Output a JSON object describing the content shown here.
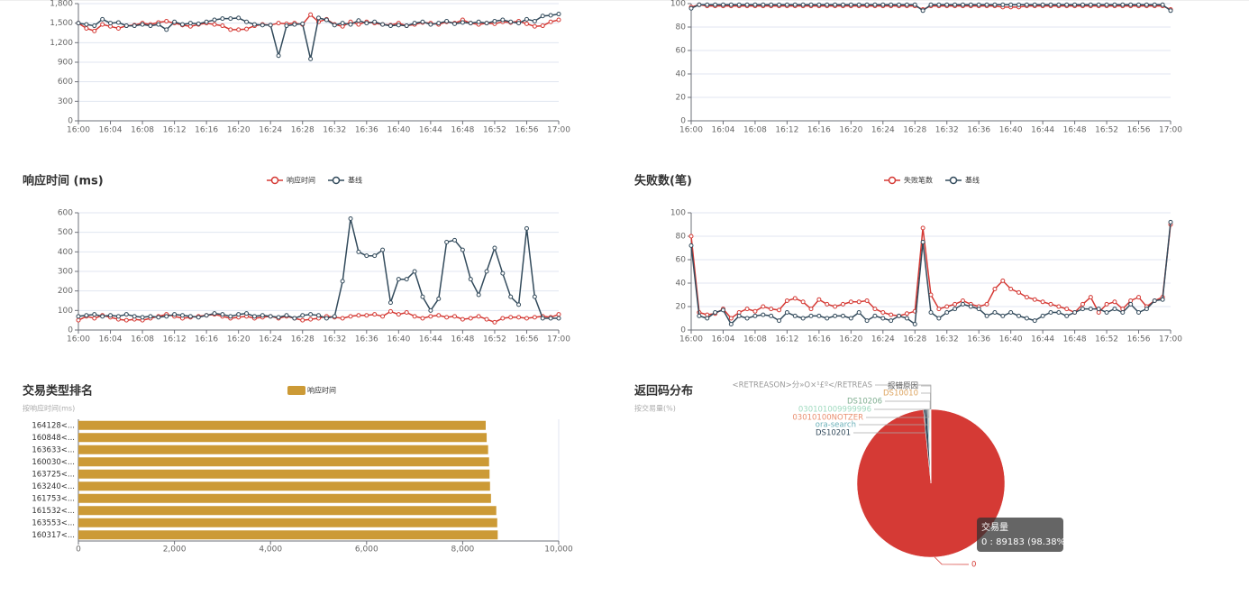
{
  "chart_data": [
    {
      "type": "line",
      "categories": [
        "16:00",
        null,
        null,
        null,
        "16:04",
        null,
        null,
        null,
        "16:08",
        null,
        null,
        null,
        "16:12",
        null,
        null,
        null,
        "16:16",
        null,
        null,
        null,
        "16:20",
        null,
        null,
        null,
        "16:24",
        null,
        null,
        null,
        "16:28",
        null,
        null,
        null,
        "16:32",
        null,
        null,
        null,
        "16:36",
        null,
        null,
        null,
        "16:40",
        null,
        null,
        null,
        "16:44",
        null,
        null,
        null,
        "16:48",
        null,
        null,
        null,
        "16:52",
        null,
        null,
        null,
        "16:56",
        null,
        null,
        null,
        "17:00"
      ],
      "ylim": [
        0,
        1800
      ],
      "yticks": [
        0,
        300,
        600,
        900,
        {
          "value": 1200,
          "label": "1,200"
        },
        {
          "value": 1500,
          "label": "1,500"
        },
        {
          "value": 1800,
          "label": "1,800"
        }
      ],
      "grid": true,
      "series": [
        {
          "color": "#d53a35",
          "values": [
            1500,
            1420,
            1380,
            1480,
            1450,
            1420,
            1460,
            1470,
            1500,
            1480,
            1510,
            1530,
            1500,
            1470,
            1450,
            1480,
            1500,
            1480,
            1460,
            1400,
            1400,
            1410,
            1460,
            1480,
            1470,
            1500,
            1490,
            1500,
            1480,
            1630,
            1520,
            1560,
            1480,
            1450,
            1520,
            1480,
            1520,
            1500,
            1480,
            1470,
            1500,
            1460,
            1480,
            1510,
            1500,
            1480,
            1520,
            1500,
            1550,
            1500,
            1480,
            1500,
            1490,
            1520,
            1510,
            1530,
            1490,
            1450,
            1460,
            1520,
            1550
          ]
        },
        {
          "color": "#334b5c",
          "values": [
            1500,
            1480,
            1460,
            1560,
            1500,
            1510,
            1460,
            1460,
            1480,
            1460,
            1480,
            1400,
            1520,
            1480,
            1500,
            1490,
            1520,
            1550,
            1570,
            1570,
            1580,
            1520,
            1480,
            1470,
            1470,
            1000,
            1460,
            1480,
            1490,
            950,
            1580,
            1550,
            1470,
            1500,
            1480,
            1540,
            1500,
            1520,
            1480,
            1460,
            1470,
            1460,
            1500,
            1520,
            1480,
            1500,
            1530,
            1490,
            1510,
            1500,
            1520,
            1500,
            1530,
            1550,
            1520,
            1500,
            1560,
            1530,
            1610,
            1620,
            1640
          ]
        }
      ]
    },
    {
      "type": "line",
      "categories": [
        "16:00",
        null,
        null,
        null,
        "16:04",
        null,
        null,
        null,
        "16:08",
        null,
        null,
        null,
        "16:12",
        null,
        null,
        null,
        "16:16",
        null,
        null,
        null,
        "16:20",
        null,
        null,
        null,
        "16:24",
        null,
        null,
        null,
        "16:28",
        null,
        null,
        null,
        "16:32",
        null,
        null,
        null,
        "16:36",
        null,
        null,
        null,
        "16:40",
        null,
        null,
        null,
        "16:44",
        null,
        null,
        null,
        "16:48",
        null,
        null,
        null,
        "16:52",
        null,
        null,
        null,
        "16:56",
        null,
        null,
        null,
        "17:00"
      ],
      "ylim": [
        0,
        100
      ],
      "yticks": [
        0,
        20,
        40,
        60,
        80,
        100
      ],
      "grid": true,
      "series": [
        {
          "color": "#d53a35",
          "values": [
            97,
            99,
            98,
            98,
            98,
            98,
            98,
            98,
            98,
            98,
            98,
            98,
            98,
            98,
            98,
            98,
            98,
            98,
            98,
            98,
            98,
            98,
            98,
            98,
            98,
            98,
            98,
            98,
            98,
            95,
            98,
            98,
            98,
            98,
            98,
            98,
            98,
            98,
            98,
            97,
            97,
            97,
            98,
            98,
            98,
            98,
            98,
            98,
            98,
            98,
            98,
            98,
            98,
            98,
            98,
            98,
            98,
            98,
            98,
            98,
            95
          ]
        },
        {
          "color": "#334b5c",
          "values": [
            96,
            99,
            99,
            99,
            99,
            99,
            99,
            99,
            99,
            99,
            99,
            99,
            99,
            99,
            99,
            99,
            99,
            99,
            99,
            99,
            99,
            99,
            99,
            99,
            99,
            99,
            99,
            99,
            99,
            94,
            99,
            99,
            99,
            99,
            99,
            99,
            99,
            99,
            99,
            99,
            99,
            99,
            99,
            99,
            99,
            99,
            99,
            99,
            99,
            99,
            99,
            99,
            99,
            99,
            99,
            99,
            99,
            99,
            99,
            99,
            94
          ]
        }
      ]
    },
    {
      "type": "line",
      "title": "响应时间 (ms)",
      "categories": [
        "16:00",
        null,
        null,
        null,
        "16:04",
        null,
        null,
        null,
        "16:08",
        null,
        null,
        null,
        "16:12",
        null,
        null,
        null,
        "16:16",
        null,
        null,
        null,
        "16:20",
        null,
        null,
        null,
        "16:24",
        null,
        null,
        null,
        "16:28",
        null,
        null,
        null,
        "16:32",
        null,
        null,
        null,
        "16:36",
        null,
        null,
        null,
        "16:40",
        null,
        null,
        null,
        "16:44",
        null,
        null,
        null,
        "16:48",
        null,
        null,
        null,
        "16:52",
        null,
        null,
        null,
        "16:56",
        null,
        null,
        null,
        "17:00"
      ],
      "ylim": [
        0,
        600
      ],
      "yticks": [
        0,
        100,
        200,
        300,
        400,
        500,
        600
      ],
      "grid": true,
      "series": [
        {
          "name": "响应时间",
          "color": "#d53a35",
          "values": [
            50,
            70,
            60,
            75,
            65,
            55,
            50,
            55,
            50,
            60,
            70,
            80,
            70,
            60,
            65,
            70,
            75,
            80,
            70,
            60,
            65,
            70,
            60,
            65,
            70,
            60,
            70,
            60,
            50,
            55,
            60,
            70,
            65,
            60,
            70,
            75,
            75,
            80,
            70,
            95,
            80,
            90,
            70,
            60,
            70,
            75,
            65,
            70,
            55,
            60,
            70,
            55,
            40,
            60,
            65,
            65,
            60,
            65,
            70,
            65,
            80
          ]
        },
        {
          "name": "基线",
          "color": "#334b5c",
          "values": [
            70,
            75,
            80,
            70,
            75,
            70,
            80,
            70,
            65,
            70,
            65,
            70,
            80,
            75,
            70,
            65,
            75,
            85,
            80,
            70,
            80,
            85,
            70,
            75,
            70,
            65,
            75,
            60,
            75,
            80,
            75,
            60,
            70,
            250,
            570,
            400,
            380,
            380,
            410,
            140,
            260,
            260,
            300,
            170,
            100,
            160,
            450,
            460,
            410,
            260,
            180,
            300,
            420,
            290,
            170,
            130,
            520,
            170,
            60,
            60,
            60
          ]
        }
      ]
    },
    {
      "type": "line",
      "title": "失败数(笔)",
      "categories": [
        "16:00",
        null,
        null,
        null,
        "16:04",
        null,
        null,
        null,
        "16:08",
        null,
        null,
        null,
        "16:12",
        null,
        null,
        null,
        "16:16",
        null,
        null,
        null,
        "16:20",
        null,
        null,
        null,
        "16:24",
        null,
        null,
        null,
        "16:28",
        null,
        null,
        null,
        "16:32",
        null,
        null,
        null,
        "16:36",
        null,
        null,
        null,
        "16:40",
        null,
        null,
        null,
        "16:44",
        null,
        null,
        null,
        "16:48",
        null,
        null,
        null,
        "16:52",
        null,
        null,
        null,
        "16:56",
        null,
        null,
        null,
        "17:00"
      ],
      "ylim": [
        0,
        100
      ],
      "yticks": [
        0,
        20,
        40,
        60,
        80,
        100
      ],
      "grid": true,
      "series": [
        {
          "name": "失败笔数",
          "color": "#d53a35",
          "values": [
            80,
            15,
            13,
            14,
            18,
            10,
            15,
            18,
            16,
            20,
            18,
            17,
            25,
            27,
            24,
            18,
            26,
            22,
            20,
            22,
            24,
            24,
            25,
            18,
            15,
            13,
            12,
            14,
            16,
            87,
            30,
            18,
            20,
            22,
            25,
            22,
            20,
            22,
            35,
            42,
            35,
            32,
            28,
            26,
            24,
            22,
            20,
            18,
            15,
            22,
            28,
            15,
            22,
            24,
            18,
            25,
            28,
            20,
            25,
            28,
            90
          ]
        },
        {
          "name": "基线",
          "color": "#334b5c",
          "values": [
            72,
            12,
            10,
            15,
            17,
            5,
            12,
            10,
            12,
            13,
            12,
            8,
            15,
            12,
            10,
            12,
            12,
            10,
            12,
            12,
            10,
            15,
            8,
            12,
            10,
            8,
            12,
            10,
            5,
            75,
            15,
            10,
            15,
            18,
            22,
            20,
            18,
            12,
            15,
            12,
            15,
            12,
            10,
            8,
            12,
            15,
            15,
            12,
            15,
            18,
            18,
            18,
            15,
            18,
            15,
            22,
            15,
            18,
            25,
            26,
            92
          ]
        }
      ]
    },
    {
      "type": "hbar",
      "title": "交易类型排名",
      "subtitle": "按响应时间(ms)",
      "categories": [
        "164128<...",
        "160848<...",
        "163633<...",
        "160030<...",
        "163725<...",
        "163240<...",
        "161753<...",
        "161532<...",
        "163553<...",
        "160317<..."
      ],
      "xlim": [
        0,
        10000
      ],
      "xticks": [
        0,
        {
          "value": 2000,
          "label": "2,000"
        },
        {
          "value": 4000,
          "label": "4,000"
        },
        {
          "value": 6000,
          "label": "6,000"
        },
        {
          "value": 8000,
          "label": "8,000"
        },
        {
          "value": 10000,
          "label": "10,000"
        }
      ],
      "series": [
        {
          "name": "响应时间",
          "color": "#cc9a36",
          "values": [
            8480,
            8500,
            8530,
            8550,
            8560,
            8570,
            8590,
            8700,
            8720,
            8730
          ]
        }
      ]
    },
    {
      "type": "pie",
      "title": "返回码分布",
      "subtitle": "按交易量(%)",
      "categories": [
        "0",
        "DS10201",
        "ora-search",
        "03010100NOTZER",
        "030101009999996",
        "DS10206",
        "DS10010",
        "报错原因",
        "<RETREASON>分»O×¹£º</RETREAS"
      ],
      "values": [
        98.38,
        0.8,
        0.3,
        0.2,
        0.1,
        0.1,
        0.06,
        0.03,
        0.03
      ],
      "colors": [
        "#d53a35",
        "#334b5c",
        "#6ab0b8",
        "#e98f6f",
        "#9fdabf",
        "#7fae90",
        "#dda45f",
        "#555555",
        "#999999"
      ],
      "tooltip": {
        "title": "交易量",
        "text": "0 : 89183 (98.38%)"
      }
    }
  ]
}
